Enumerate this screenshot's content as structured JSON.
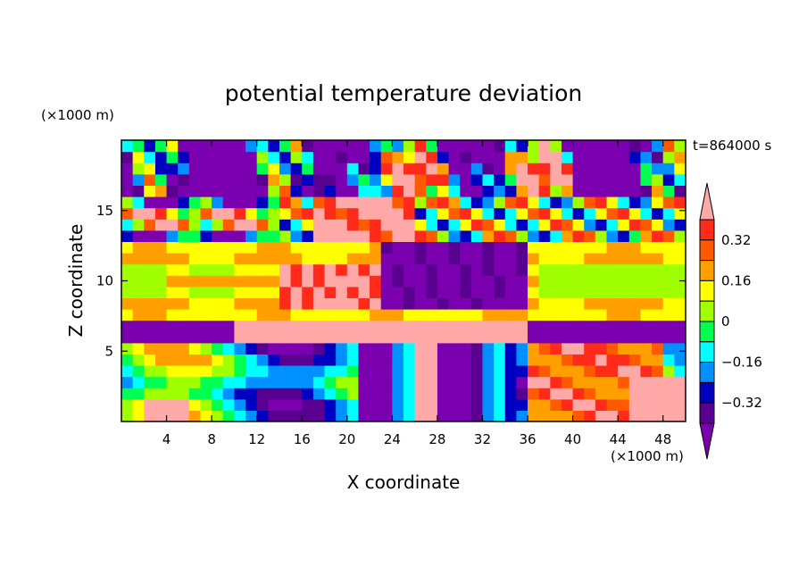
{
  "chart_data": {
    "type": "heatmap",
    "title": "potential temperature deviation",
    "time_label": "t=864000 s",
    "xlabel": "X coordinate",
    "ylabel": "Z coordinate",
    "x_unit": "(×1000 m)",
    "y_unit": "(×1000 m)",
    "xlim": [
      0,
      50
    ],
    "ylim": [
      0,
      20
    ],
    "x_ticks": [
      4,
      8,
      12,
      16,
      20,
      24,
      28,
      32,
      36,
      40,
      44,
      48
    ],
    "y_ticks": [
      5,
      10,
      15
    ],
    "colorbar": {
      "levels": [
        -0.4,
        -0.32,
        -0.24,
        -0.16,
        -0.08,
        0,
        0.08,
        0.16,
        0.24,
        0.32,
        0.4
      ],
      "labeled_levels": [
        "0.32",
        "0.16",
        "0",
        "−0.16",
        "−0.32"
      ],
      "labeled_values": [
        0.32,
        0.16,
        0,
        -0.16,
        -0.32
      ],
      "colors_top_to_bottom": [
        "#ffa8a8",
        "#ff2a1a",
        "#ff5a00",
        "#ffa000",
        "#ffff00",
        "#a0ff00",
        "#00ff50",
        "#00ffff",
        "#0090ff",
        "#0000c0",
        "#5a0090",
        "#7a00b0"
      ]
    }
  }
}
